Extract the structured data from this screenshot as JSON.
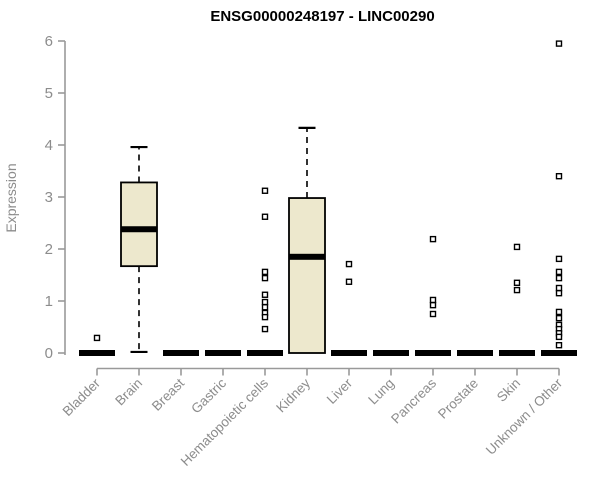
{
  "chart_data": {
    "type": "boxplot",
    "title": "ENSG00000248197 - LINC00290",
    "ylabel": "Expression",
    "xlabel": "",
    "ylim": [
      0,
      6
    ],
    "yticks": [
      0,
      1,
      2,
      3,
      4,
      5,
      6
    ],
    "grid": false,
    "legend": "none",
    "colors": {
      "box_fill": "#EDE8CD",
      "box_stroke": "#000000",
      "axis_line": "#999999",
      "tick_text": "#8c8c8c",
      "title_text": "#000000",
      "background": "#ffffff"
    },
    "categories": [
      "Bladder",
      "Brain",
      "Breast",
      "Gastric",
      "Hematopoietic cells",
      "Kidney",
      "Liver",
      "Lung",
      "Pancreas",
      "Prostate",
      "Skin",
      "Unknown / Other"
    ],
    "boxes": [
      {
        "category": "Bladder",
        "low": 0,
        "q1": 0,
        "median": 0,
        "q3": 0,
        "high": 0,
        "outliers": [
          0.29
        ]
      },
      {
        "category": "Brain",
        "low": 0.02,
        "q1": 1.67,
        "median": 2.38,
        "q3": 3.28,
        "high": 3.96,
        "outliers": []
      },
      {
        "category": "Breast",
        "low": 0,
        "q1": 0,
        "median": 0,
        "q3": 0,
        "high": 0,
        "outliers": []
      },
      {
        "category": "Gastric",
        "low": 0,
        "q1": 0,
        "median": 0,
        "q3": 0,
        "high": 0,
        "outliers": []
      },
      {
        "category": "Hematopoietic cells",
        "low": 0,
        "q1": 0,
        "median": 0,
        "q3": 0,
        "high": 0,
        "outliers": [
          3.12,
          2.62,
          1.56,
          1.44,
          1.12,
          0.98,
          0.88,
          0.77,
          0.69,
          0.46
        ]
      },
      {
        "category": "Kidney",
        "low": 0,
        "q1": 0,
        "median": 1.85,
        "q3": 2.98,
        "high": 4.33,
        "outliers": []
      },
      {
        "category": "Liver",
        "low": 0,
        "q1": 0,
        "median": 0,
        "q3": 0,
        "high": 0,
        "outliers": [
          1.71,
          1.37
        ]
      },
      {
        "category": "Lung",
        "low": 0,
        "q1": 0,
        "median": 0,
        "q3": 0,
        "high": 0,
        "outliers": []
      },
      {
        "category": "Pancreas",
        "low": 0,
        "q1": 0,
        "median": 0,
        "q3": 0,
        "high": 0,
        "outliers": [
          2.19,
          1.02,
          0.92,
          0.75
        ]
      },
      {
        "category": "Prostate",
        "low": 0,
        "q1": 0,
        "median": 0,
        "q3": 0,
        "high": 0,
        "outliers": []
      },
      {
        "category": "Skin",
        "low": 0,
        "q1": 0,
        "median": 0,
        "q3": 0,
        "high": 0,
        "outliers": [
          2.04,
          1.35,
          1.21
        ]
      },
      {
        "category": "Unknown / Other",
        "low": 0,
        "q1": 0,
        "median": 0,
        "q3": 0,
        "high": 0,
        "outliers": [
          5.95,
          3.4,
          1.81,
          1.56,
          1.44,
          1.25,
          1.15,
          0.79,
          0.67,
          0.54,
          0.46,
          0.38,
          0.31,
          0.15
        ]
      }
    ]
  }
}
